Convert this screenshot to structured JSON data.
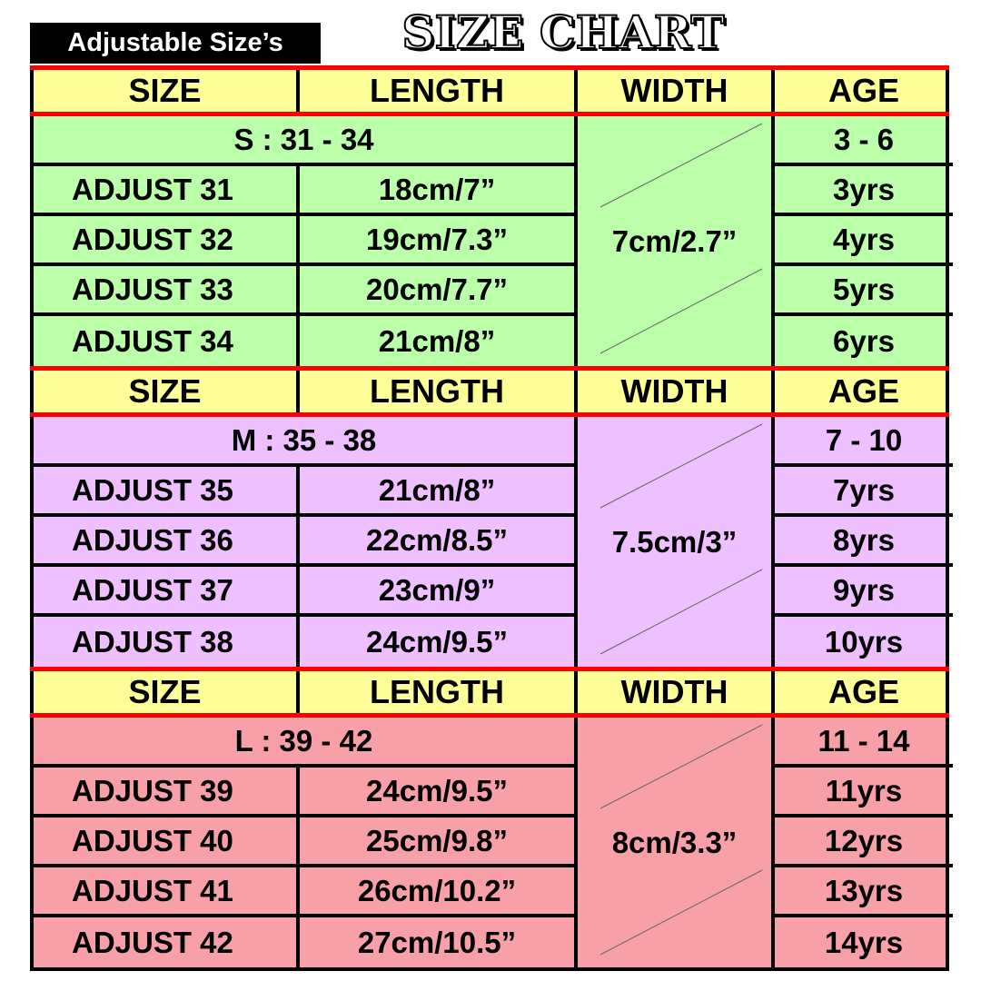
{
  "badge": "Adjustable Size’s",
  "title": "SIZE CHART",
  "headers": [
    "SIZE",
    "LENGTH",
    "WIDTH",
    "AGE"
  ],
  "colors": {
    "header": "#ffff99",
    "separator": "#ff0000",
    "S": "#bbffaa",
    "M": "#eec0ff",
    "L": "#f7a0a8"
  },
  "sections": [
    {
      "key": "S",
      "group": "S : 31 - 34",
      "age_range": "3 - 6",
      "width": "7cm/2.7”",
      "rows": [
        {
          "size": "ADJUST 31",
          "length": "18cm/7”",
          "age": "3yrs"
        },
        {
          "size": "ADJUST 32",
          "length": "19cm/7.3”",
          "age": "4yrs"
        },
        {
          "size": "ADJUST 33",
          "length": "20cm/7.7”",
          "age": "5yrs"
        },
        {
          "size": "ADJUST 34",
          "length": "21cm/8”",
          "age": "6yrs"
        }
      ]
    },
    {
      "key": "M",
      "group": "M : 35 - 38",
      "age_range": "7 - 10",
      "width": "7.5cm/3”",
      "rows": [
        {
          "size": "ADJUST 35",
          "length": "21cm/8”",
          "age": "7yrs"
        },
        {
          "size": "ADJUST 36",
          "length": "22cm/8.5”",
          "age": "8yrs"
        },
        {
          "size": "ADJUST 37",
          "length": "23cm/9”",
          "age": "9yrs"
        },
        {
          "size": "ADJUST 38",
          "length": "24cm/9.5”",
          "age": "10yrs"
        }
      ]
    },
    {
      "key": "L",
      "group": "L : 39 - 42",
      "age_range": "11 - 14",
      "width": "8cm/3.3”",
      "rows": [
        {
          "size": "ADJUST 39",
          "length": "24cm/9.5”",
          "age": "11yrs"
        },
        {
          "size": "ADJUST 40",
          "length": "25cm/9.8”",
          "age": "12yrs"
        },
        {
          "size": "ADJUST 41",
          "length": "26cm/10.2”",
          "age": "13yrs"
        },
        {
          "size": "ADJUST 42",
          "length": "27cm/10.5”",
          "age": "14yrs"
        }
      ]
    }
  ]
}
